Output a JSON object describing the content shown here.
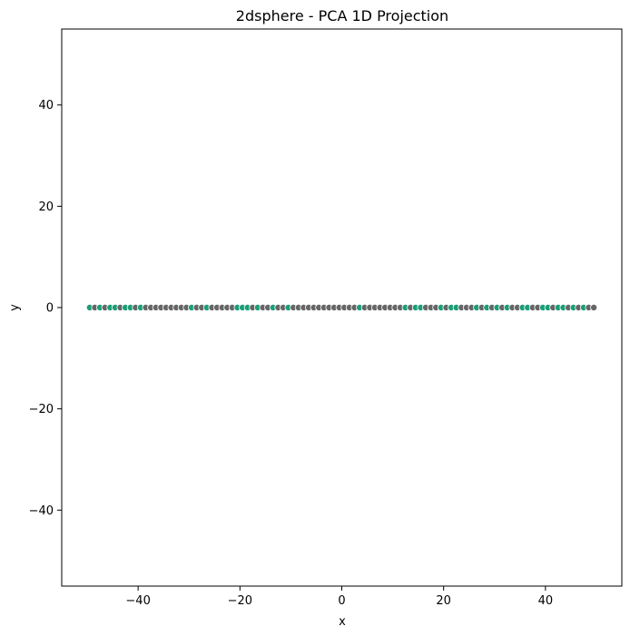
{
  "chart_data": {
    "type": "scatter",
    "title": "2dsphere - PCA 1D Projection",
    "xlabel": "x",
    "ylabel": "y",
    "xlim": [
      -55,
      55
    ],
    "ylim": [
      -55,
      55
    ],
    "xticks": [
      -40,
      -20,
      0,
      20,
      40
    ],
    "yticks": [
      -40,
      -20,
      0,
      20,
      40
    ],
    "xtick_labels": [
      "−40",
      "−20",
      "0",
      "20",
      "40"
    ],
    "ytick_labels": [
      "−40",
      "−20",
      "0",
      "20",
      "40"
    ],
    "grid": false,
    "colors": {
      "a": "#1b9e77",
      "b": "#666666"
    },
    "x": [
      -49.5,
      -48.5,
      -47.5,
      -46.5,
      -45.5,
      -44.5,
      -43.5,
      -42.5,
      -41.5,
      -40.5,
      -39.5,
      -38.5,
      -37.5,
      -36.5,
      -35.5,
      -34.5,
      -33.5,
      -32.5,
      -31.5,
      -30.5,
      -29.5,
      -28.5,
      -27.5,
      -26.5,
      -25.5,
      -24.5,
      -23.5,
      -22.5,
      -21.5,
      -20.5,
      -19.5,
      -18.5,
      -17.5,
      -16.5,
      -15.5,
      -14.5,
      -13.5,
      -12.5,
      -11.5,
      -10.5,
      -9.5,
      -8.5,
      -7.5,
      -6.5,
      -5.5,
      -4.5,
      -3.5,
      -2.5,
      -1.5,
      -0.5,
      0.5,
      1.5,
      2.5,
      3.5,
      4.5,
      5.5,
      6.5,
      7.5,
      8.5,
      9.5,
      10.5,
      11.5,
      12.5,
      13.5,
      14.5,
      15.5,
      16.5,
      17.5,
      18.5,
      19.5,
      20.5,
      21.5,
      22.5,
      23.5,
      24.5,
      25.5,
      26.5,
      27.5,
      28.5,
      29.5,
      30.5,
      31.5,
      32.5,
      33.5,
      34.5,
      35.5,
      36.5,
      37.5,
      38.5,
      39.5,
      40.5,
      41.5,
      42.5,
      43.5,
      44.5,
      45.5,
      46.5,
      47.5,
      48.5,
      49.5
    ],
    "y": [
      0,
      0,
      0,
      0,
      0,
      0,
      0,
      0,
      0,
      0,
      0,
      0,
      0,
      0,
      0,
      0,
      0,
      0,
      0,
      0,
      0,
      0,
      0,
      0,
      0,
      0,
      0,
      0,
      0,
      0,
      0,
      0,
      0,
      0,
      0,
      0,
      0,
      0,
      0,
      0,
      0,
      0,
      0,
      0,
      0,
      0,
      0,
      0,
      0,
      0,
      0,
      0,
      0,
      0,
      0,
      0,
      0,
      0,
      0,
      0,
      0,
      0,
      0,
      0,
      0,
      0,
      0,
      0,
      0,
      0,
      0,
      0,
      0,
      0,
      0,
      0,
      0,
      0,
      0,
      0,
      0,
      0,
      0,
      0,
      0,
      0,
      0,
      0,
      0,
      0,
      0,
      0,
      0,
      0,
      0,
      0,
      0,
      0,
      0,
      0
    ],
    "groups": [
      "a",
      "b",
      "a",
      "b",
      "a",
      "a",
      "b",
      "a",
      "a",
      "b",
      "a",
      "b",
      "b",
      "b",
      "b",
      "b",
      "b",
      "b",
      "b",
      "b",
      "a",
      "b",
      "b",
      "a",
      "b",
      "b",
      "b",
      "b",
      "b",
      "a",
      "a",
      "a",
      "b",
      "a",
      "b",
      "b",
      "a",
      "b",
      "b",
      "a",
      "b",
      "b",
      "b",
      "b",
      "b",
      "b",
      "b",
      "b",
      "b",
      "b",
      "b",
      "b",
      "b",
      "a",
      "b",
      "b",
      "b",
      "b",
      "b",
      "b",
      "b",
      "b",
      "a",
      "b",
      "a",
      "a",
      "b",
      "b",
      "b",
      "a",
      "b",
      "a",
      "a",
      "b",
      "b",
      "b",
      "a",
      "b",
      "a",
      "b",
      "a",
      "b",
      "a",
      "b",
      "b",
      "a",
      "a",
      "b",
      "b",
      "a",
      "a",
      "b",
      "a",
      "a",
      "b",
      "a",
      "b",
      "a",
      "b",
      "b"
    ]
  }
}
